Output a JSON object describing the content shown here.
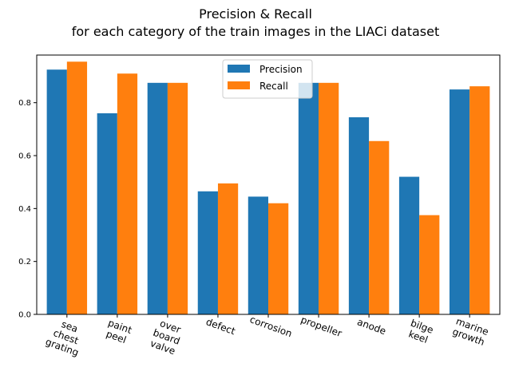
{
  "chart_data": {
    "type": "bar",
    "title": "Precision & Recall",
    "subtitle": "for each category of the train images in the LIACi dataset",
    "xlabel": "",
    "ylabel": "",
    "ylim": [
      0,
      0.98
    ],
    "yticks": [
      "0.0",
      "0.2",
      "0.4",
      "0.6",
      "0.8"
    ],
    "categories": [
      [
        "sea",
        "chest",
        "grating"
      ],
      [
        "paint",
        "peel"
      ],
      [
        "over",
        "board",
        "valve"
      ],
      [
        "defect"
      ],
      [
        "corrosion"
      ],
      [
        "propeller"
      ],
      [
        "anode"
      ],
      [
        "bilge",
        "keel"
      ],
      [
        "marine",
        "growth"
      ]
    ],
    "series": [
      {
        "name": "Precision",
        "color": "#1f77b4",
        "values": [
          0.925,
          0.76,
          0.875,
          0.465,
          0.445,
          0.875,
          0.745,
          0.52,
          0.85
        ]
      },
      {
        "name": "Recall",
        "color": "#ff7f0e",
        "values": [
          0.955,
          0.91,
          0.875,
          0.495,
          0.42,
          0.875,
          0.655,
          0.375,
          0.862
        ]
      }
    ],
    "legend_position": "top-center",
    "grid": false
  }
}
